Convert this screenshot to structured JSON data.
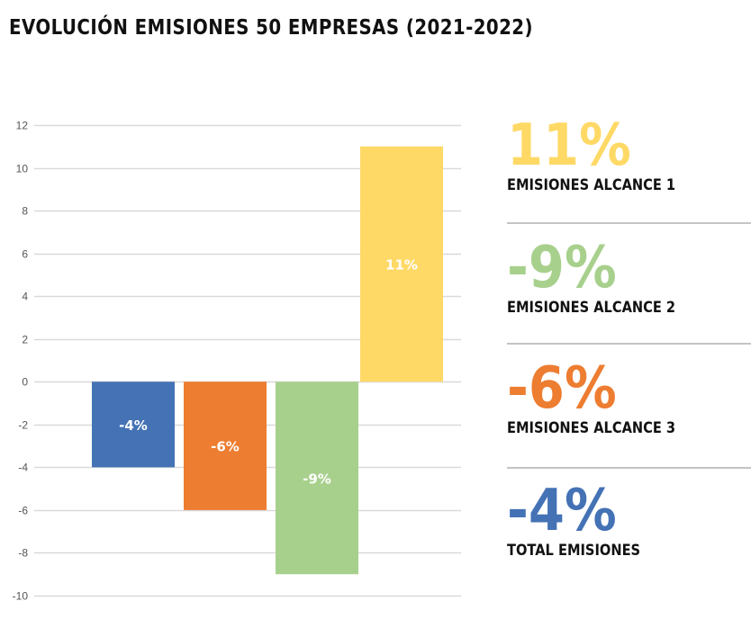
{
  "title": "EVOLUCIÓN EMISIONES 50 EMPRESAS (2021-2022)",
  "colors": {
    "total": "#4472b5",
    "alcance3": "#ed7d31",
    "alcance2": "#a8d08d",
    "alcance1": "#ffd966",
    "grid": "#d9d9d9",
    "divider": "#c4c4c4"
  },
  "chart_data": {
    "type": "bar",
    "title": "EVOLUCIÓN EMISIONES 50 EMPRESAS (2021-2022)",
    "xlabel": "",
    "ylabel": "",
    "categories": [
      "Total emisiones",
      "Emisiones alcance 3",
      "Emisiones alcance 2",
      "Emisiones alcance 1"
    ],
    "values": [
      -4,
      -6,
      -9,
      11
    ],
    "data_labels": [
      "-4%",
      "-6%",
      "-9%",
      "11%"
    ],
    "bar_colors": [
      "#4472b5",
      "#ed7d31",
      "#a8d08d",
      "#ffd966"
    ],
    "ylim": [
      -10,
      12
    ],
    "yticks": [
      12,
      10,
      8,
      6,
      4,
      2,
      0,
      -2,
      -4,
      -6,
      -8,
      -10
    ],
    "ytick_labels": [
      "12",
      "10",
      "8",
      "6",
      "4",
      "2",
      "0",
      "-2",
      "-4",
      "-6",
      "-8",
      "-10"
    ],
    "grid": true,
    "legend": "none"
  },
  "kpis": [
    {
      "value": "11%",
      "label": "EMISIONES ALCANCE 1",
      "color": "#ffd966"
    },
    {
      "value": "-9%",
      "label": "EMISIONES ALCANCE 2",
      "color": "#a8d08d"
    },
    {
      "value": "-6%",
      "label": "EMISIONES ALCANCE 3",
      "color": "#ed7d31"
    },
    {
      "value": "-4%",
      "label": "TOTAL EMISIONES",
      "color": "#4472b5"
    }
  ]
}
